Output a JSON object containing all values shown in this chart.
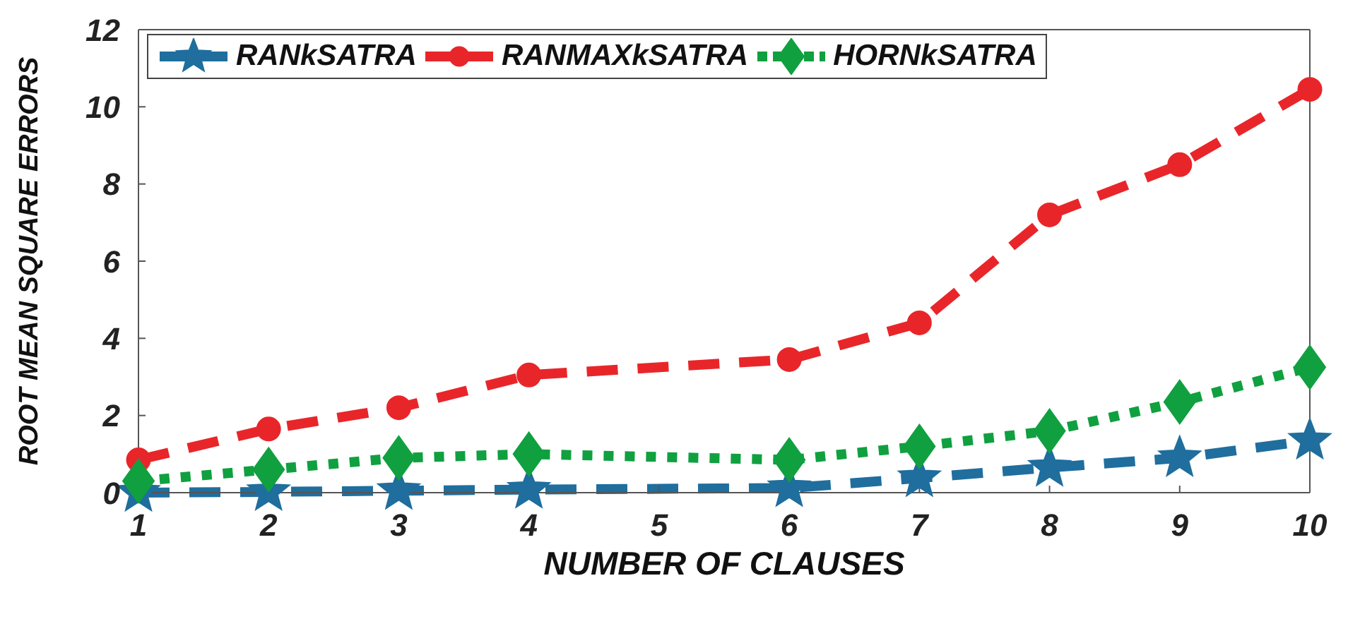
{
  "chart_data": {
    "type": "line",
    "xlabel": "NUMBER OF CLAUSES",
    "ylabel": "ROOT MEAN SQUARE ERRORS",
    "x": [
      1,
      2,
      3,
      4,
      6,
      7,
      8,
      9,
      10
    ],
    "xlim": [
      1,
      10
    ],
    "xticks": [
      1,
      2,
      3,
      4,
      5,
      6,
      7,
      8,
      9,
      10
    ],
    "ylim": [
      0,
      12
    ],
    "yticks": [
      0,
      2,
      4,
      6,
      8,
      10,
      12
    ],
    "grid": false,
    "legend": "top left",
    "series": [
      {
        "name": "RANkSATRA",
        "color": "#1f6e9e",
        "marker": "star",
        "line_style": "dashed",
        "values": [
          0,
          0.02,
          0.05,
          0.08,
          0.12,
          0.38,
          0.65,
          0.9,
          1.35
        ]
      },
      {
        "name": "RANMAXkSATRA",
        "color": "#e8262a",
        "marker": "circle",
        "line_style": "dashed",
        "values": [
          0.85,
          1.65,
          2.2,
          3.05,
          3.45,
          4.4,
          7.2,
          8.5,
          10.45
        ]
      },
      {
        "name": "HORNkSATRA",
        "color": "#10a040",
        "marker": "diamond",
        "line_style": "dotted",
        "values": [
          0.3,
          0.6,
          0.9,
          1.0,
          0.85,
          1.2,
          1.6,
          2.35,
          3.25
        ]
      }
    ]
  }
}
